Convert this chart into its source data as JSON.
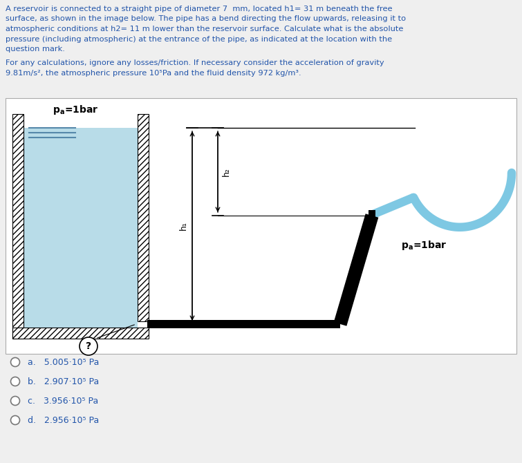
{
  "bg_color": "#efefef",
  "diagram_bg": "#ffffff",
  "water_color": "#b8dce8",
  "text_color": "#2255aa",
  "answer_color": "#2255aa",
  "title_lines": [
    "A reservoir is connected to a straight pipe of diameter 7  mm, located h1= 31 m beneath the free",
    "surface, as shown in the image below. The pipe has a bend directing the flow upwards, releasing it to",
    "atmospheric conditions at h2= 11 m lower than the reservoir surface. Calculate what is the absolute",
    "pressure (including atmospheric) at the entrance of the pipe, as indicated at the location with the",
    "question mark."
  ],
  "subtitle_lines": [
    "For any calculations, ignore any losses/friction. If necessary consider the acceleration of gravity",
    "9.81m/s², the atmospheric pressure 10⁵Pa and the fluid density 972 kg/m³."
  ],
  "answers": [
    "a.   5.005·10⁵ Pa",
    "b.   2.907·10⁵ Pa",
    "c.   3.956·10⁵ Pa",
    "d.   2.956·10⁵ Pa"
  ]
}
